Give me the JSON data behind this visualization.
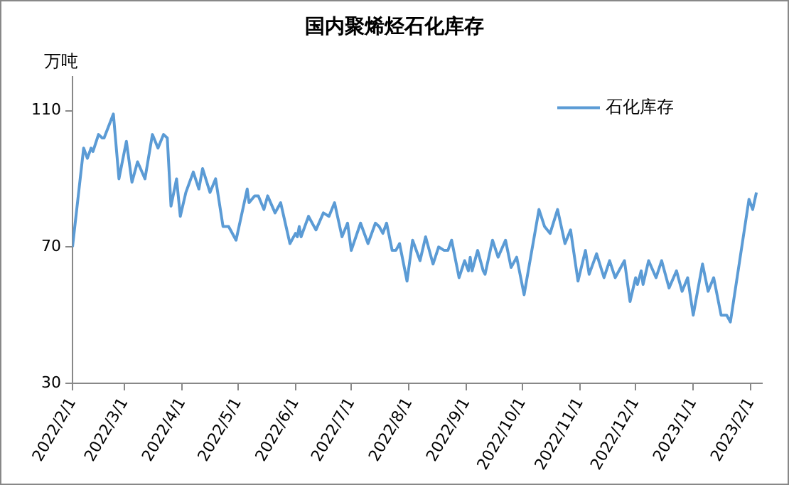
{
  "chart_data": {
    "type": "line",
    "title": "国内聚烯烃石化库存",
    "ylabel": "万吨",
    "x": [
      "2022-02-01",
      "2022-02-07",
      "2022-02-09",
      "2022-02-11",
      "2022-02-12",
      "2022-02-15",
      "2022-02-17",
      "2022-02-18",
      "2022-02-23",
      "2022-02-26",
      "2022-03-02",
      "2022-03-05",
      "2022-03-08",
      "2022-03-12",
      "2022-03-16",
      "2022-03-19",
      "2022-03-22",
      "2022-03-24",
      "2022-03-26",
      "2022-03-29",
      "2022-03-31",
      "2022-04-03",
      "2022-04-07",
      "2022-04-10",
      "2022-04-12",
      "2022-04-16",
      "2022-04-19",
      "2022-04-23",
      "2022-04-26",
      "2022-04-30",
      "2022-05-06",
      "2022-05-07",
      "2022-05-10",
      "2022-05-12",
      "2022-05-15",
      "2022-05-17",
      "2022-05-21",
      "2022-05-24",
      "2022-05-29",
      "2022-06-01",
      "2022-06-02",
      "2022-06-03",
      "2022-06-04",
      "2022-06-08",
      "2022-06-12",
      "2022-06-16",
      "2022-06-19",
      "2022-06-22",
      "2022-06-26",
      "2022-06-29",
      "2022-07-01",
      "2022-07-06",
      "2022-07-10",
      "2022-07-14",
      "2022-07-16",
      "2022-07-18",
      "2022-07-20",
      "2022-07-23",
      "2022-07-25",
      "2022-07-27",
      "2022-07-31",
      "2022-08-03",
      "2022-08-07",
      "2022-08-10",
      "2022-08-14",
      "2022-08-17",
      "2022-08-20",
      "2022-08-22",
      "2022-08-24",
      "2022-08-28",
      "2022-08-31",
      "2022-09-02",
      "2022-09-03",
      "2022-09-04",
      "2022-09-07",
      "2022-09-10",
      "2022-09-11",
      "2022-09-15",
      "2022-09-18",
      "2022-09-22",
      "2022-09-25",
      "2022-09-28",
      "2022-10-02",
      "2022-10-10",
      "2022-10-13",
      "2022-10-16",
      "2022-10-20",
      "2022-10-24",
      "2022-10-27",
      "2022-10-31",
      "2022-11-04",
      "2022-11-06",
      "2022-11-10",
      "2022-11-14",
      "2022-11-17",
      "2022-11-20",
      "2022-11-25",
      "2022-11-28",
      "2022-12-01",
      "2022-12-02",
      "2022-12-04",
      "2022-12-05",
      "2022-12-08",
      "2022-12-12",
      "2022-12-15",
      "2022-12-17",
      "2022-12-19",
      "2022-12-23",
      "2022-12-26",
      "2022-12-29",
      "2023-01-01",
      "2023-01-06",
      "2023-01-09",
      "2023-01-12",
      "2023-01-16",
      "2023-01-19",
      "2023-01-21",
      "2023-01-31",
      "2023-02-02",
      "2023-02-04"
    ],
    "series": [
      {
        "name": "石化库存",
        "color": "#5b9bd5",
        "values": [
          70,
          99,
          96,
          99,
          98,
          103,
          102,
          102,
          109,
          90,
          101,
          89,
          95,
          90,
          103,
          99,
          103,
          102,
          82,
          90,
          79,
          86,
          92,
          87,
          93,
          86,
          90,
          76,
          76,
          72,
          87,
          83,
          85,
          85,
          81,
          85,
          80,
          83,
          71,
          74,
          73,
          76,
          73,
          79,
          75,
          80,
          79,
          83,
          73,
          77,
          69,
          77,
          71,
          77,
          76,
          74,
          77,
          69,
          69,
          71,
          60,
          72,
          66,
          73,
          65,
          70,
          69,
          69,
          72,
          61,
          66,
          63,
          67,
          63,
          69,
          63,
          62,
          72,
          67,
          72,
          64,
          67,
          56,
          81,
          76,
          74,
          81,
          71,
          75,
          60,
          69,
          62,
          68,
          61,
          66,
          61,
          66,
          54,
          61,
          59,
          63,
          59,
          66,
          61,
          66,
          62,
          58,
          63,
          57,
          61,
          50,
          65,
          57,
          61,
          50,
          50,
          48,
          84,
          81,
          86
        ]
      }
    ],
    "xlim": [
      "2022-02-01",
      "2023-02-07"
    ],
    "xticks": [
      {
        "value": "2022-02-01",
        "label": "2022/2/1"
      },
      {
        "value": "2022-03-01",
        "label": "2022/3/1"
      },
      {
        "value": "2022-04-01",
        "label": "2022/4/1"
      },
      {
        "value": "2022-05-01",
        "label": "2022/5/1"
      },
      {
        "value": "2022-06-01",
        "label": "2022/6/1"
      },
      {
        "value": "2022-07-01",
        "label": "2022/7/1"
      },
      {
        "value": "2022-08-01",
        "label": "2022/8/1"
      },
      {
        "value": "2022-09-01",
        "label": "2022/9/1"
      },
      {
        "value": "2022-10-01",
        "label": "2022/10/1"
      },
      {
        "value": "2022-11-01",
        "label": "2022/11/1"
      },
      {
        "value": "2022-12-01",
        "label": "2022/12/1"
      },
      {
        "value": "2023-01-01",
        "label": "2023/1/1"
      },
      {
        "value": "2023-02-01",
        "label": "2023/2/1"
      }
    ],
    "ylim": [
      30,
      120
    ],
    "yticks": [
      30,
      70,
      110
    ],
    "grid": false,
    "legend": "top right",
    "marker": "none",
    "line_style": "solid"
  }
}
